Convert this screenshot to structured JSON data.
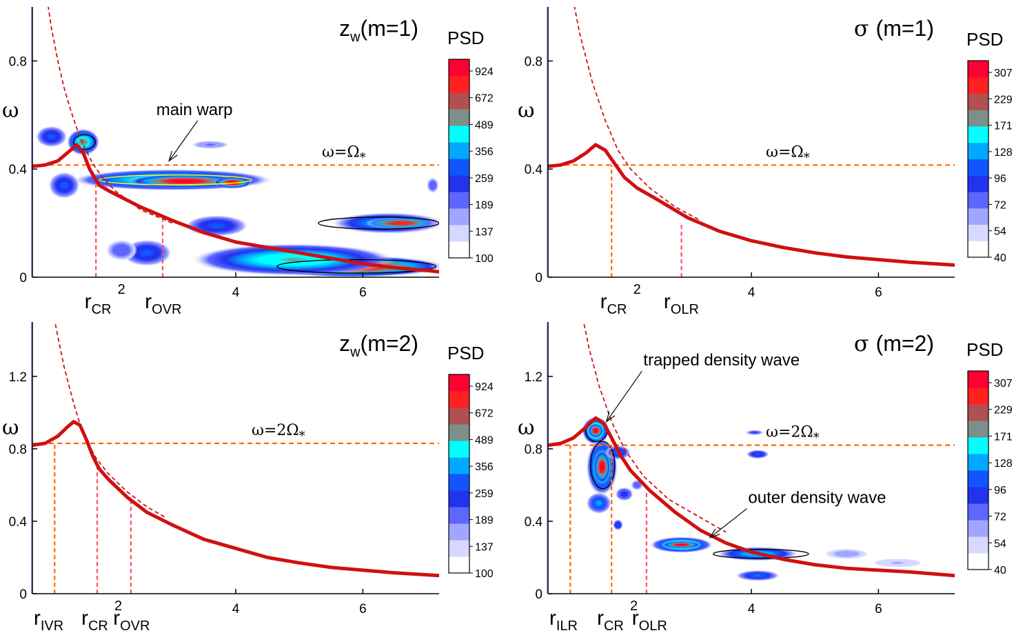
{
  "colors": {
    "curve": "#d01010",
    "dashed_curve": "#d01010",
    "hline": "#ff6a00",
    "vline_orange": "#ff6a00",
    "vline_pink": "#ff5060",
    "colormap": [
      "#ffffff",
      "#d6d8ff",
      "#a0a6ff",
      "#5d66ff",
      "#2233ee",
      "#1155ff",
      "#00a8ff",
      "#00ffff",
      "#7d8f8a",
      "#b05050",
      "#ff2020",
      "#ff0030"
    ]
  },
  "chart_data": [
    {
      "type": "heatmap",
      "panel": "top-left",
      "title": {
        "main": "z",
        "sub": "w",
        "rest": "(m=1)"
      },
      "ylabel": "ω",
      "xlim": [
        0.8,
        7.2
      ],
      "ylim": [
        0,
        1.0
      ],
      "xticks": [
        {
          "v": 4,
          "label": "4"
        },
        {
          "v": 6,
          "label": "6"
        }
      ],
      "yticks": [
        {
          "v": 0,
          "label": "0"
        },
        {
          "v": 0.4,
          "label": "0.4"
        },
        {
          "v": 0.8,
          "label": "0.8"
        }
      ],
      "hline": {
        "y": 0.415,
        "label": {
          "a": "ω=Ω",
          "sub": "*"
        }
      },
      "peak_curve": [
        [
          0.8,
          0.41
        ],
        [
          1.0,
          0.415
        ],
        [
          1.2,
          0.43
        ],
        [
          1.4,
          0.47
        ],
        [
          1.5,
          0.49
        ],
        [
          1.6,
          0.46
        ],
        [
          1.7,
          0.4
        ],
        [
          1.85,
          0.34
        ],
        [
          2.0,
          0.32
        ],
        [
          2.5,
          0.26
        ],
        [
          3.0,
          0.21
        ],
        [
          3.5,
          0.165
        ],
        [
          4.0,
          0.13
        ],
        [
          4.5,
          0.11
        ],
        [
          5.0,
          0.09
        ],
        [
          5.5,
          0.07
        ],
        [
          6.0,
          0.05
        ],
        [
          6.5,
          0.035
        ],
        [
          7.0,
          0.025
        ],
        [
          7.2,
          0.02
        ]
      ],
      "dashed_curve": [
        [
          1.0,
          1.08
        ],
        [
          1.1,
          0.92
        ],
        [
          1.2,
          0.8
        ],
        [
          1.3,
          0.7
        ],
        [
          1.4,
          0.62
        ],
        [
          1.5,
          0.55
        ],
        [
          1.6,
          0.49
        ],
        [
          1.75,
          0.42
        ],
        [
          1.9,
          0.37
        ],
        [
          2.1,
          0.32
        ],
        [
          2.5,
          0.25
        ],
        [
          3.0,
          0.2
        ]
      ],
      "vlines": [
        {
          "x": 1.8,
          "from": 0,
          "to": 0.34,
          "style": "pink"
        },
        {
          "x": 2.85,
          "from": 0,
          "to": 0.21,
          "style": "pink"
        }
      ],
      "blobs": [
        {
          "x": 3.0,
          "y": 0.36,
          "rx": 1.6,
          "ry": 0.04,
          "v": 0.75
        },
        {
          "x": 3.2,
          "y": 0.355,
          "rx": 0.9,
          "ry": 0.025,
          "v": 1.0
        },
        {
          "x": 3.95,
          "y": 0.35,
          "rx": 0.3,
          "ry": 0.022,
          "v": 1.0
        },
        {
          "x": 1.6,
          "y": 0.5,
          "rx": 0.26,
          "ry": 0.05,
          "v": 0.75
        },
        {
          "x": 1.1,
          "y": 0.52,
          "rx": 0.25,
          "ry": 0.04,
          "v": 0.45
        },
        {
          "x": 1.3,
          "y": 0.34,
          "rx": 0.25,
          "ry": 0.05,
          "v": 0.45
        },
        {
          "x": 3.6,
          "y": 0.49,
          "rx": 0.3,
          "ry": 0.015,
          "v": 0.25
        },
        {
          "x": 6.4,
          "y": 0.2,
          "rx": 0.9,
          "ry": 0.04,
          "v": 0.65
        },
        {
          "x": 6.6,
          "y": 0.2,
          "rx": 0.55,
          "ry": 0.022,
          "v": 0.9
        },
        {
          "x": 5.8,
          "y": 0.04,
          "rx": 1.5,
          "ry": 0.04,
          "v": 1.0
        },
        {
          "x": 4.9,
          "y": 0.065,
          "rx": 1.6,
          "ry": 0.06,
          "v": 0.7
        },
        {
          "x": 3.7,
          "y": 0.19,
          "rx": 0.5,
          "ry": 0.04,
          "v": 0.45
        },
        {
          "x": 2.6,
          "y": 0.09,
          "rx": 0.4,
          "ry": 0.05,
          "v": 0.45
        },
        {
          "x": 2.2,
          "y": 0.1,
          "rx": 0.25,
          "ry": 0.04,
          "v": 0.3
        },
        {
          "x": 7.1,
          "y": 0.34,
          "rx": 0.1,
          "ry": 0.03,
          "v": 0.3
        }
      ],
      "contours": [
        {
          "x": 3.05,
          "y": 0.36,
          "rx": 1.2,
          "ry": 0.018,
          "color": "#ffff00"
        },
        {
          "x": 1.62,
          "y": 0.5,
          "rx": 0.17,
          "ry": 0.027,
          "color": "#000000"
        },
        {
          "x": 6.25,
          "y": 0.2,
          "rx": 0.95,
          "ry": 0.022,
          "color": "#000000"
        },
        {
          "x": 5.9,
          "y": 0.04,
          "rx": 1.25,
          "ry": 0.025,
          "color": "#000000"
        }
      ],
      "r_labels": [
        {
          "x": 1.75,
          "base": "r",
          "sub": "CR",
          "sup": "2"
        },
        {
          "x": 2.7,
          "base": "r",
          "sub": "OVR",
          "sup": ""
        }
      ],
      "annotations": [
        {
          "text": "main warp",
          "x": 2.75,
          "y": 0.6,
          "ax": 2.95,
          "ay": 0.43
        }
      ],
      "colorbar": {
        "label": "PSD",
        "ticks": [
          "924",
          "672",
          "489",
          "356",
          "259",
          "189",
          "137",
          "100"
        ]
      }
    },
    {
      "type": "heatmap",
      "panel": "top-right",
      "title": {
        "main": "σ",
        "sub": "",
        "rest": "(m=1)"
      },
      "ylabel": "ω",
      "xlim": [
        0.8,
        7.2
      ],
      "ylim": [
        0,
        1.0
      ],
      "xticks": [
        {
          "v": 4,
          "label": "4"
        },
        {
          "v": 6,
          "label": "6"
        }
      ],
      "yticks": [
        {
          "v": 0,
          "label": "0"
        },
        {
          "v": 0.4,
          "label": "0.4"
        },
        {
          "v": 0.8,
          "label": "0.8"
        }
      ],
      "hline": {
        "y": 0.415,
        "label": {
          "a": "ω=Ω",
          "sub": "*"
        }
      },
      "peak_curve": [
        [
          0.8,
          0.41
        ],
        [
          1.0,
          0.415
        ],
        [
          1.2,
          0.43
        ],
        [
          1.4,
          0.46
        ],
        [
          1.55,
          0.49
        ],
        [
          1.7,
          0.47
        ],
        [
          1.85,
          0.42
        ],
        [
          2.0,
          0.37
        ],
        [
          2.2,
          0.33
        ],
        [
          2.5,
          0.29
        ],
        [
          3.0,
          0.22
        ],
        [
          3.5,
          0.17
        ],
        [
          4.0,
          0.135
        ],
        [
          4.5,
          0.11
        ],
        [
          5.0,
          0.09
        ],
        [
          5.5,
          0.075
        ],
        [
          6.0,
          0.065
        ],
        [
          6.5,
          0.055
        ],
        [
          7.2,
          0.045
        ]
      ],
      "dashed_curve": [
        [
          1.15,
          1.08
        ],
        [
          1.3,
          0.9
        ],
        [
          1.5,
          0.72
        ],
        [
          1.7,
          0.58
        ],
        [
          1.9,
          0.47
        ],
        [
          2.1,
          0.4
        ],
        [
          2.4,
          0.33
        ],
        [
          2.8,
          0.26
        ],
        [
          3.2,
          0.21
        ]
      ],
      "vlines": [
        {
          "x": 1.8,
          "from": 0,
          "to": 0.415,
          "style": "orange"
        },
        {
          "x": 2.9,
          "from": 0,
          "to": 0.2,
          "style": "pink"
        }
      ],
      "blobs": [],
      "contours": [],
      "r_labels": [
        {
          "x": 1.75,
          "base": "r",
          "sub": "CR",
          "sup": "2"
        },
        {
          "x": 2.75,
          "base": "r",
          "sub": "OLR",
          "sup": ""
        }
      ],
      "annotations": [],
      "colorbar": {
        "label": "PSD",
        "ticks": [
          "307",
          "229",
          "171",
          "128",
          "96",
          "72",
          "54",
          "40"
        ]
      }
    },
    {
      "type": "heatmap",
      "panel": "bottom-left",
      "title": {
        "main": "z",
        "sub": "w",
        "rest": "(m=2)"
      },
      "ylabel": "ω",
      "xlim": [
        0.8,
        7.2
      ],
      "ylim": [
        0,
        1.5
      ],
      "xticks": [
        {
          "v": 4,
          "label": "4"
        },
        {
          "v": 6,
          "label": "6"
        }
      ],
      "yticks": [
        {
          "v": 0,
          "label": "0"
        },
        {
          "v": 0.4,
          "label": "0.4"
        },
        {
          "v": 0.8,
          "label": "0.8"
        },
        {
          "v": 1.2,
          "label": "1.2"
        }
      ],
      "hline": {
        "y": 0.83,
        "label": {
          "a": "ω=2Ω",
          "sub": "*"
        }
      },
      "peak_curve": [
        [
          0.8,
          0.82
        ],
        [
          1.0,
          0.83
        ],
        [
          1.2,
          0.87
        ],
        [
          1.35,
          0.92
        ],
        [
          1.45,
          0.95
        ],
        [
          1.55,
          0.93
        ],
        [
          1.65,
          0.85
        ],
        [
          1.75,
          0.76
        ],
        [
          1.85,
          0.69
        ],
        [
          2.0,
          0.63
        ],
        [
          2.3,
          0.53
        ],
        [
          2.6,
          0.45
        ],
        [
          3.0,
          0.38
        ],
        [
          3.5,
          0.3
        ],
        [
          4.0,
          0.25
        ],
        [
          4.5,
          0.2
        ],
        [
          5.0,
          0.17
        ],
        [
          5.5,
          0.145
        ],
        [
          6.0,
          0.13
        ],
        [
          6.5,
          0.115
        ],
        [
          7.2,
          0.1
        ]
      ],
      "dashed_curve": [
        [
          1.1,
          1.6
        ],
        [
          1.2,
          1.42
        ],
        [
          1.3,
          1.25
        ],
        [
          1.45,
          1.05
        ],
        [
          1.6,
          0.88
        ],
        [
          1.8,
          0.75
        ],
        [
          2.0,
          0.66
        ],
        [
          2.3,
          0.56
        ],
        [
          2.6,
          0.48
        ],
        [
          2.9,
          0.42
        ]
      ],
      "vlines": [
        {
          "x": 1.15,
          "from": 0,
          "to": 0.83,
          "style": "orange"
        },
        {
          "x": 1.82,
          "from": 0,
          "to": 0.7,
          "style": "pink"
        },
        {
          "x": 2.35,
          "from": 0,
          "to": 0.53,
          "style": "pink"
        }
      ],
      "blobs": [],
      "contours": [],
      "r_labels": [
        {
          "x": 0.95,
          "base": "r",
          "sub": "IVR",
          "sup": ""
        },
        {
          "x": 1.7,
          "base": "r",
          "sub": "CR",
          "sup": "2"
        },
        {
          "x": 2.2,
          "base": "r",
          "sub": "OVR",
          "sup": ""
        }
      ],
      "annotations": [],
      "colorbar": {
        "label": "PSD",
        "ticks": [
          "924",
          "672",
          "489",
          "356",
          "259",
          "189",
          "137",
          "100"
        ]
      }
    },
    {
      "type": "heatmap",
      "panel": "bottom-right",
      "title": {
        "main": "σ",
        "sub": "",
        "rest": "(m=2)"
      },
      "ylabel": "ω",
      "xlim": [
        0.8,
        7.2
      ],
      "ylim": [
        0,
        1.5
      ],
      "xticks": [
        {
          "v": 4,
          "label": "4"
        },
        {
          "v": 6,
          "label": "6"
        }
      ],
      "yticks": [
        {
          "v": 0,
          "label": "0"
        },
        {
          "v": 0.4,
          "label": "0.4"
        },
        {
          "v": 0.8,
          "label": "0.8"
        },
        {
          "v": 1.2,
          "label": "1.2"
        }
      ],
      "hline": {
        "y": 0.82,
        "label": {
          "a": "ω=2Ω",
          "sub": "*"
        }
      },
      "peak_curve": [
        [
          0.8,
          0.82
        ],
        [
          1.0,
          0.83
        ],
        [
          1.2,
          0.86
        ],
        [
          1.4,
          0.92
        ],
        [
          1.55,
          0.97
        ],
        [
          1.68,
          0.94
        ],
        [
          1.8,
          0.86
        ],
        [
          1.95,
          0.76
        ],
        [
          2.1,
          0.68
        ],
        [
          2.4,
          0.57
        ],
        [
          2.8,
          0.45
        ],
        [
          3.2,
          0.35
        ],
        [
          3.6,
          0.28
        ],
        [
          4.0,
          0.23
        ],
        [
          4.5,
          0.19
        ],
        [
          5.0,
          0.16
        ],
        [
          5.5,
          0.14
        ],
        [
          6.0,
          0.13
        ],
        [
          6.5,
          0.12
        ],
        [
          7.2,
          0.1
        ]
      ],
      "dashed_curve": [
        [
          1.3,
          1.6
        ],
        [
          1.45,
          1.35
        ],
        [
          1.6,
          1.15
        ],
        [
          1.8,
          0.95
        ],
        [
          2.0,
          0.8
        ],
        [
          2.3,
          0.65
        ],
        [
          2.7,
          0.52
        ],
        [
          3.2,
          0.42
        ],
        [
          3.6,
          0.34
        ]
      ],
      "vlines": [
        {
          "x": 1.15,
          "from": 0,
          "to": 0.82,
          "style": "orange"
        },
        {
          "x": 1.8,
          "from": 0,
          "to": 0.86,
          "style": "orange"
        },
        {
          "x": 2.35,
          "from": 0,
          "to": 0.57,
          "style": "pink"
        }
      ],
      "blobs": [
        {
          "x": 1.55,
          "y": 0.9,
          "rx": 0.22,
          "ry": 0.08,
          "v": 0.85
        },
        {
          "x": 1.55,
          "y": 0.9,
          "rx": 0.12,
          "ry": 0.04,
          "v": 1.0
        },
        {
          "x": 1.65,
          "y": 0.7,
          "rx": 0.25,
          "ry": 0.16,
          "v": 0.75
        },
        {
          "x": 1.65,
          "y": 0.7,
          "rx": 0.13,
          "ry": 0.09,
          "v": 1.0
        },
        {
          "x": 1.6,
          "y": 0.5,
          "rx": 0.2,
          "ry": 0.06,
          "v": 0.55
        },
        {
          "x": 1.9,
          "y": 0.78,
          "rx": 0.2,
          "ry": 0.04,
          "v": 0.5
        },
        {
          "x": 2.0,
          "y": 0.55,
          "rx": 0.15,
          "ry": 0.04,
          "v": 0.4
        },
        {
          "x": 1.9,
          "y": 0.38,
          "rx": 0.08,
          "ry": 0.03,
          "v": 0.45
        },
        {
          "x": 2.2,
          "y": 0.6,
          "rx": 0.1,
          "ry": 0.03,
          "v": 0.3
        },
        {
          "x": 2.9,
          "y": 0.27,
          "rx": 0.5,
          "ry": 0.045,
          "v": 0.85
        },
        {
          "x": 2.9,
          "y": 0.27,
          "rx": 0.3,
          "ry": 0.02,
          "v": 1.0
        },
        {
          "x": 4.1,
          "y": 0.22,
          "rx": 0.65,
          "ry": 0.04,
          "v": 0.6
        },
        {
          "x": 4.1,
          "y": 0.1,
          "rx": 0.35,
          "ry": 0.03,
          "v": 0.5
        },
        {
          "x": 4.1,
          "y": 0.77,
          "rx": 0.18,
          "ry": 0.025,
          "v": 0.45
        },
        {
          "x": 4.05,
          "y": 0.89,
          "rx": 0.15,
          "ry": 0.015,
          "v": 0.35
        },
        {
          "x": 5.5,
          "y": 0.22,
          "rx": 0.35,
          "ry": 0.03,
          "v": 0.2
        },
        {
          "x": 6.3,
          "y": 0.17,
          "rx": 0.4,
          "ry": 0.025,
          "v": 0.15
        }
      ],
      "contours": [
        {
          "x": 1.56,
          "y": 0.9,
          "rx": 0.17,
          "ry": 0.06,
          "color": "#000000"
        },
        {
          "x": 1.66,
          "y": 0.71,
          "rx": 0.19,
          "ry": 0.13,
          "color": "#000000"
        },
        {
          "x": 4.15,
          "y": 0.22,
          "rx": 0.75,
          "ry": 0.025,
          "color": "#000000"
        }
      ],
      "r_labels": [
        {
          "x": 0.95,
          "base": "r",
          "sub": "ILR",
          "sup": ""
        },
        {
          "x": 1.7,
          "base": "r",
          "sub": "CR",
          "sup": "2"
        },
        {
          "x": 2.25,
          "base": "r",
          "sub": "OLR",
          "sup": ""
        }
      ],
      "annotations": [
        {
          "text": "trapped density wave",
          "x": 2.3,
          "y": 1.26,
          "ax": 1.72,
          "ay": 0.95
        },
        {
          "text": "outer density wave",
          "x": 3.95,
          "y": 0.5,
          "ax": 3.35,
          "ay": 0.31
        }
      ],
      "colorbar": {
        "label": "PSD",
        "ticks": [
          "307",
          "229",
          "171",
          "128",
          "96",
          "72",
          "54",
          "40"
        ]
      }
    }
  ]
}
